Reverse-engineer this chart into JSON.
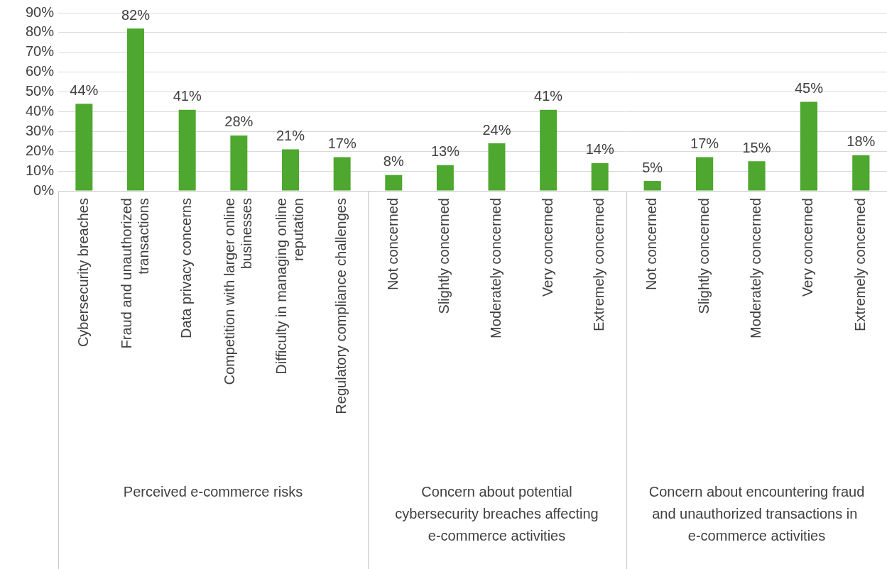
{
  "chart_data": [
    {
      "type": "bar",
      "xlabel": "Perceived e-commerce risks",
      "categories": [
        "Cybersecurity breaches",
        "Fraud and unauthorized transactions",
        "Data privacy concerns",
        "Competition with larger online businesses",
        "Difficulty in managing online reputation",
        "Regulatory compliance challenges"
      ],
      "values": [
        44,
        82,
        41,
        28,
        21,
        17
      ],
      "value_labels": [
        "44%",
        "82%",
        "41%",
        "28%",
        "21%",
        "17%"
      ],
      "color": "#4ea72e",
      "ylim": [
        0,
        90
      ],
      "yticks": [
        {
          "value": 0,
          "label": "0%"
        },
        {
          "value": 10,
          "label": "10%"
        },
        {
          "value": 20,
          "label": "20%"
        },
        {
          "value": 30,
          "label": "30%"
        },
        {
          "value": 40,
          "label": "40%"
        },
        {
          "value": 50,
          "label": "50%"
        },
        {
          "value": 60,
          "label": "60%"
        },
        {
          "value": 70,
          "label": "70%"
        },
        {
          "value": 80,
          "label": "80%"
        },
        {
          "value": 90,
          "label": "90%"
        }
      ],
      "grid": "y"
    },
    {
      "type": "bar",
      "xlabel": "Concern about potential cybersecurity breaches affecting e-commerce activities",
      "categories": [
        "Not concerned",
        "Slightly concerned",
        "Moderately concerned",
        "Very concerned",
        "Extremely concerned"
      ],
      "values": [
        8,
        13,
        24,
        41,
        14
      ],
      "value_labels": [
        "8%",
        "13%",
        "24%",
        "41%",
        "14%"
      ],
      "color": "#4ea72e",
      "ylim": [
        0,
        90
      ],
      "yticks": [
        0,
        10,
        20,
        30,
        40,
        50,
        60,
        70,
        80,
        90
      ],
      "grid": "y",
      "tick_labels": "x"
    },
    {
      "type": "bar",
      "xlabel": "Concern about encountering fraud and unauthorized transactions in  e-commerce activities",
      "categories": [
        "Not concerned",
        "Slightly concerned",
        "Moderately concerned",
        "Very concerned",
        "Extremely concerned"
      ],
      "values": [
        5,
        17,
        15,
        45,
        18
      ],
      "value_labels": [
        "5%",
        "17%",
        "15%",
        "45%",
        "18%"
      ],
      "color": "#4ea72e",
      "ylim": [
        0,
        90
      ],
      "yticks": [
        0,
        10,
        20,
        30,
        40,
        50,
        60,
        70,
        80,
        90
      ],
      "grid": "y",
      "tick_labels": "x"
    }
  ]
}
